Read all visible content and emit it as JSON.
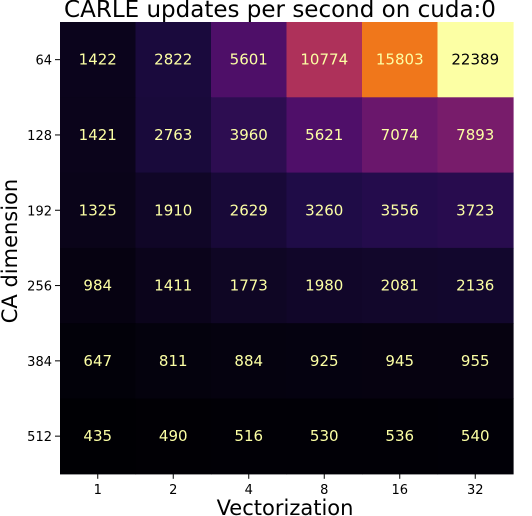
{
  "chart_data": {
    "type": "heatmap",
    "title": "CARLE updates per second on cuda:0",
    "xlabel": "Vectorization",
    "ylabel": "CA dimension",
    "x_categories": [
      "1",
      "2",
      "4",
      "8",
      "16",
      "32"
    ],
    "y_categories": [
      "64",
      "128",
      "192",
      "256",
      "384",
      "512"
    ],
    "values": [
      [
        1422,
        2822,
        5601,
        10774,
        15803,
        22389
      ],
      [
        1421,
        2763,
        3960,
        5621,
        7074,
        7893
      ],
      [
        1325,
        1910,
        2629,
        3260,
        3556,
        3723
      ],
      [
        984,
        1411,
        1773,
        1980,
        2081,
        2136
      ],
      [
        647,
        811,
        884,
        925,
        945,
        955
      ],
      [
        435,
        490,
        516,
        530,
        536,
        540
      ]
    ],
    "colormap": "inferno",
    "value_range": [
      435,
      22389
    ],
    "grid": false,
    "legend": "none"
  },
  "colors": {
    "annotation_text": "#fcffa4",
    "annotation_text_on_bright": "#000004",
    "tick_color": "#000000"
  }
}
